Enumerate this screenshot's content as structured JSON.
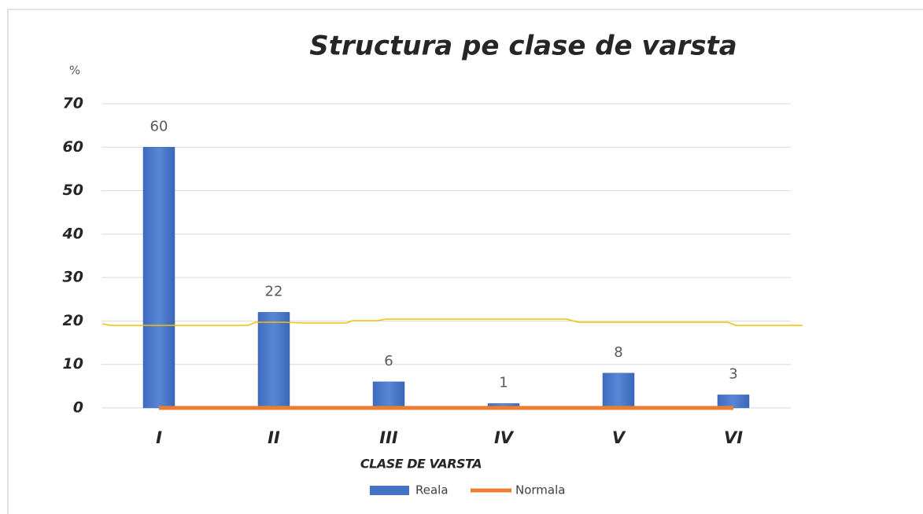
{
  "chart_data": {
    "type": "bar",
    "title": "Structura pe clase de varsta",
    "y_label": "%",
    "x_label": "CLASE DE VARSTA",
    "categories": [
      "I",
      "II",
      "III",
      "IV",
      "V",
      "VI"
    ],
    "series": [
      {
        "name": "Reala",
        "color": "#4472c4",
        "type": "bar",
        "values": [
          60,
          22,
          6,
          1,
          8,
          3
        ]
      },
      {
        "name": "Normala",
        "color": "#ed7d31",
        "type": "line",
        "values": [
          0,
          0,
          0,
          0,
          0,
          0
        ]
      }
    ],
    "ylim": [
      0,
      70
    ],
    "yticks": [
      0,
      10,
      20,
      30,
      40,
      50,
      60,
      70
    ],
    "grid": true,
    "legend": "bottom"
  }
}
